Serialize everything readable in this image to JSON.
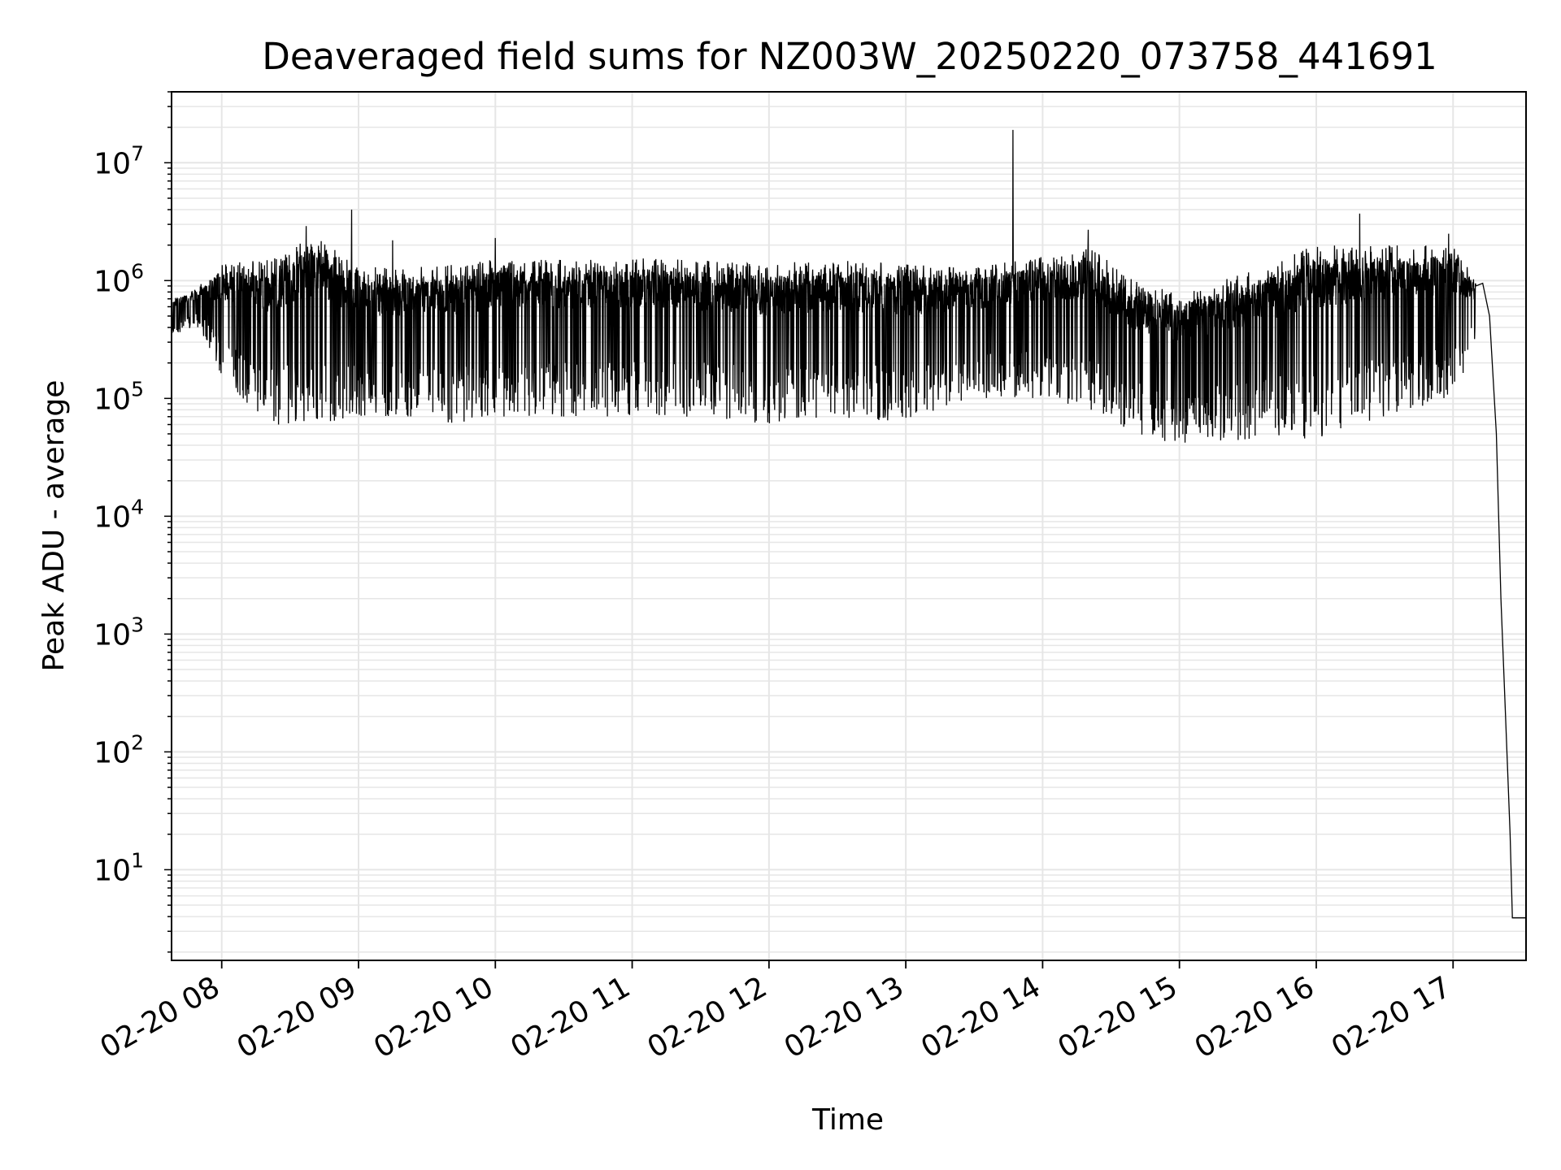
{
  "chart_data": {
    "type": "line",
    "title": "Deaveraged field sums for NZ003W_20250220_073758_441691",
    "xlabel": "Time",
    "ylabel": "Peak ADU - average",
    "yscale": "log",
    "ylim": [
      1.7,
      40000000
    ],
    "xlim": [
      "2025-02-20 07:38",
      "2025-02-20 17:32"
    ],
    "grid": true,
    "line_color": "#000000",
    "grid_color": "#e6e6e6",
    "x_ticks": [
      {
        "value": "2025-02-20 08:00",
        "label": "02-20 08"
      },
      {
        "value": "2025-02-20 09:00",
        "label": "02-20 09"
      },
      {
        "value": "2025-02-20 10:00",
        "label": "02-20 10"
      },
      {
        "value": "2025-02-20 11:00",
        "label": "02-20 11"
      },
      {
        "value": "2025-02-20 12:00",
        "label": "02-20 12"
      },
      {
        "value": "2025-02-20 13:00",
        "label": "02-20 13"
      },
      {
        "value": "2025-02-20 14:00",
        "label": "02-20 14"
      },
      {
        "value": "2025-02-20 15:00",
        "label": "02-20 15"
      },
      {
        "value": "2025-02-20 16:00",
        "label": "02-20 16"
      },
      {
        "value": "2025-02-20 17:00",
        "label": "02-20 17"
      }
    ],
    "y_ticks": [
      {
        "value": 10,
        "base": "10",
        "exp": "1"
      },
      {
        "value": 100,
        "base": "10",
        "exp": "2"
      },
      {
        "value": 1000,
        "base": "10",
        "exp": "3"
      },
      {
        "value": 10000,
        "base": "10",
        "exp": "4"
      },
      {
        "value": 100000,
        "base": "10",
        "exp": "5"
      },
      {
        "value": 1000000,
        "base": "10",
        "exp": "6"
      },
      {
        "value": 10000000,
        "base": "10",
        "exp": "7"
      }
    ],
    "series": [
      {
        "name": "",
        "envelope": [
          {
            "x": "2025-02-20 07:38",
            "high": 700000,
            "low": 350000
          },
          {
            "x": "2025-02-20 07:50",
            "high": 900000,
            "low": 400000
          },
          {
            "x": "2025-02-20 08:00",
            "high": 1400000,
            "low": 150000
          },
          {
            "x": "2025-02-20 08:20",
            "high": 1500000,
            "low": 60000
          },
          {
            "x": "2025-02-20 08:40",
            "high": 2500000,
            "low": 60000
          },
          {
            "x": "2025-02-20 09:00",
            "high": 1300000,
            "low": 70000
          },
          {
            "x": "2025-02-20 09:20",
            "high": 1300000,
            "low": 70000
          },
          {
            "x": "2025-02-20 09:40",
            "high": 1400000,
            "low": 60000
          },
          {
            "x": "2025-02-20 10:00",
            "high": 1500000,
            "low": 70000
          },
          {
            "x": "2025-02-20 10:30",
            "high": 1500000,
            "low": 70000
          },
          {
            "x": "2025-02-20 11:00",
            "high": 1600000,
            "low": 70000
          },
          {
            "x": "2025-02-20 11:30",
            "high": 1500000,
            "low": 70000
          },
          {
            "x": "2025-02-20 12:00",
            "high": 1400000,
            "low": 60000
          },
          {
            "x": "2025-02-20 12:30",
            "high": 1500000,
            "low": 70000
          },
          {
            "x": "2025-02-20 13:00",
            "high": 1400000,
            "low": 60000
          },
          {
            "x": "2025-02-20 13:30",
            "high": 1300000,
            "low": 100000
          },
          {
            "x": "2025-02-20 14:00",
            "high": 1600000,
            "low": 100000
          },
          {
            "x": "2025-02-20 14:20",
            "high": 2000000,
            "low": 80000
          },
          {
            "x": "2025-02-20 14:40",
            "high": 1000000,
            "low": 50000
          },
          {
            "x": "2025-02-20 15:00",
            "high": 800000,
            "low": 40000
          },
          {
            "x": "2025-02-20 15:30",
            "high": 1200000,
            "low": 45000
          },
          {
            "x": "2025-02-20 16:00",
            "high": 2000000,
            "low": 45000
          },
          {
            "x": "2025-02-20 16:20",
            "high": 2000000,
            "low": 60000
          },
          {
            "x": "2025-02-20 16:40",
            "high": 2000000,
            "low": 80000
          },
          {
            "x": "2025-02-20 17:00",
            "high": 2000000,
            "low": 100000
          },
          {
            "x": "2025-02-20 17:10",
            "high": 1000000,
            "low": 300000
          }
        ],
        "spikes": [
          {
            "x": "2025-02-20 08:37",
            "y": 2900000
          },
          {
            "x": "2025-02-20 08:57",
            "y": 4000000
          },
          {
            "x": "2025-02-20 09:15",
            "y": 2200000
          },
          {
            "x": "2025-02-20 10:00",
            "y": 2300000
          },
          {
            "x": "2025-02-20 13:47",
            "y": 19000000
          },
          {
            "x": "2025-02-20 14:20",
            "y": 2700000
          },
          {
            "x": "2025-02-20 16:19",
            "y": 3700000
          },
          {
            "x": "2025-02-20 16:58",
            "y": 2500000
          }
        ],
        "tail": [
          {
            "x": "2025-02-20 17:10",
            "y": 900000
          },
          {
            "x": "2025-02-20 17:13",
            "y": 950000
          },
          {
            "x": "2025-02-20 17:16",
            "y": 500000
          },
          {
            "x": "2025-02-20 17:19",
            "y": 50000
          },
          {
            "x": "2025-02-20 17:21",
            "y": 2000
          },
          {
            "x": "2025-02-20 17:23",
            "y": 200
          },
          {
            "x": "2025-02-20 17:25",
            "y": 20
          },
          {
            "x": "2025-02-20 17:26",
            "y": 3.9
          },
          {
            "x": "2025-02-20 17:32",
            "y": 3.9
          }
        ]
      }
    ]
  }
}
